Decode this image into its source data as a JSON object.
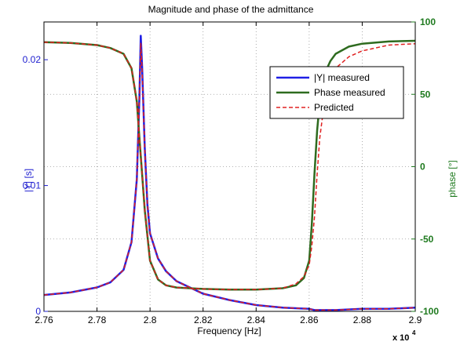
{
  "chart_data": {
    "type": "line",
    "title": "Magnitude and phase of the admittance",
    "xlabel": "Frequency [Hz]",
    "ylabel_left": "|Y| [s]",
    "ylabel_right": "phase [°]",
    "x_multiplier": "x 10",
    "x_multiplier_exp": "4",
    "xlim": [
      2.76,
      2.9
    ],
    "ylim_left": [
      0,
      0.023
    ],
    "ylim_right": [
      -100,
      100
    ],
    "x_ticks": [
      "2.76",
      "2.78",
      "2.8",
      "2.82",
      "2.84",
      "2.86",
      "2.88",
      "2.9"
    ],
    "y_left_ticks": [
      "0",
      "0.01",
      "0.02"
    ],
    "y_right_ticks": [
      "-100",
      "-50",
      "0",
      "50",
      "100"
    ],
    "grid": true,
    "legend_position": "top-right",
    "colors": {
      "magnitude": "#1f1fe6",
      "phase": "#2e6b1f",
      "predicted": "#e02020",
      "left_axis": "#2020d0",
      "right_axis": "#1f7a1f"
    },
    "series": [
      {
        "name": "|Y| measured",
        "axis": "left",
        "x": [
          2.76,
          2.77,
          2.78,
          2.785,
          2.79,
          2.793,
          2.795,
          2.796,
          2.7965,
          2.797,
          2.798,
          2.799,
          2.8,
          2.803,
          2.806,
          2.81,
          2.82,
          2.83,
          2.84,
          2.85,
          2.86,
          2.862,
          2.865,
          2.87,
          2.88,
          2.89,
          2.9
        ],
        "values": [
          0.0013,
          0.0015,
          0.0019,
          0.0023,
          0.0033,
          0.0055,
          0.0105,
          0.017,
          0.0219,
          0.0195,
          0.013,
          0.0085,
          0.0062,
          0.0042,
          0.0032,
          0.0024,
          0.0014,
          0.0009,
          0.0005,
          0.0003,
          0.0002,
          0.0001,
          0.0001,
          0.0001,
          0.0002,
          0.0002,
          0.0003
        ]
      },
      {
        "name": "Phase measured",
        "axis": "right",
        "x": [
          2.76,
          2.77,
          2.78,
          2.785,
          2.79,
          2.793,
          2.795,
          2.796,
          2.797,
          2.798,
          2.8,
          2.803,
          2.806,
          2.81,
          2.82,
          2.83,
          2.84,
          2.85,
          2.855,
          2.858,
          2.86,
          2.861,
          2.862,
          2.863,
          2.864,
          2.866,
          2.868,
          2.87,
          2.875,
          2.88,
          2.89,
          2.9
        ],
        "values": [
          86,
          85.5,
          84,
          82,
          78,
          68,
          45,
          20,
          -5,
          -30,
          -65,
          -78,
          -82,
          -83.5,
          -84.5,
          -85,
          -85,
          -84,
          -82,
          -77,
          -65,
          -40,
          -5,
          25,
          45,
          65,
          73,
          78,
          83,
          85,
          86.5,
          87
        ]
      },
      {
        "name": "Predicted",
        "axis": "right",
        "dashed": true,
        "x": [
          2.76,
          2.77,
          2.78,
          2.785,
          2.79,
          2.793,
          2.795,
          2.796,
          2.797,
          2.798,
          2.8,
          2.803,
          2.806,
          2.81,
          2.82,
          2.83,
          2.84,
          2.85,
          2.855,
          2.858,
          2.86,
          2.861,
          2.862,
          2.863,
          2.864,
          2.866,
          2.868,
          2.87,
          2.875,
          2.88,
          2.89,
          2.9
        ],
        "values": [
          86,
          85.5,
          84,
          82,
          78,
          68,
          45,
          20,
          -5,
          -30,
          -65,
          -78,
          -82,
          -83.5,
          -84.5,
          -85,
          -85,
          -84,
          -81,
          -76,
          -68,
          -55,
          -35,
          -5,
          20,
          48,
          60,
          68,
          76,
          80,
          84,
          85
        ]
      },
      {
        "name": "Predicted",
        "axis": "left",
        "dashed": true,
        "show_in_legend": false,
        "x": [
          2.76,
          2.77,
          2.78,
          2.785,
          2.79,
          2.793,
          2.795,
          2.796,
          2.7965,
          2.797,
          2.798,
          2.799,
          2.8,
          2.803,
          2.806,
          2.81,
          2.82,
          2.83,
          2.84,
          2.85,
          2.86,
          2.862,
          2.865,
          2.87,
          2.88,
          2.89,
          2.9
        ],
        "values": [
          0.0013,
          0.0015,
          0.0019,
          0.0023,
          0.0033,
          0.0055,
          0.0105,
          0.017,
          0.0213,
          0.0192,
          0.013,
          0.0085,
          0.0062,
          0.0042,
          0.0032,
          0.0024,
          0.0014,
          0.0009,
          0.0005,
          0.0003,
          0.0002,
          0.0001,
          0.0001,
          0.0001,
          0.0002,
          0.0002,
          0.0003
        ]
      }
    ]
  }
}
